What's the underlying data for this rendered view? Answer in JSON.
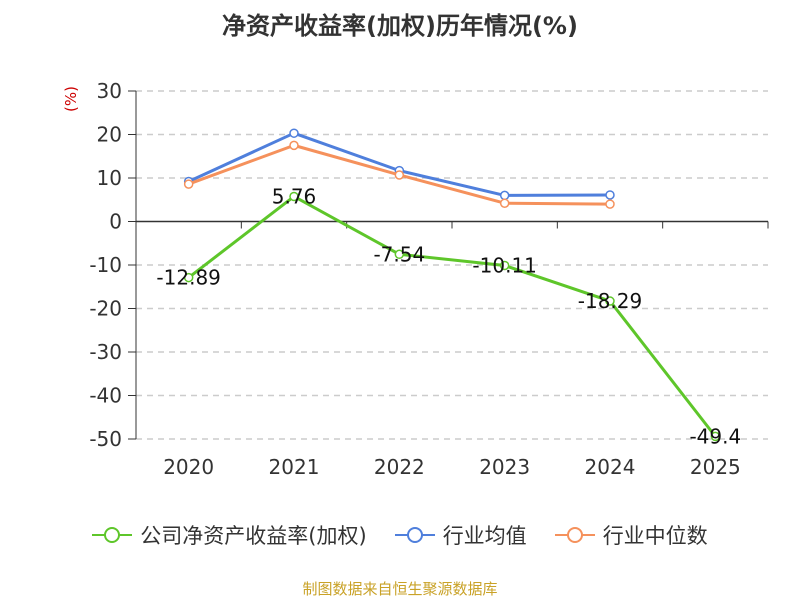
{
  "chart_data": {
    "type": "line",
    "title": "净资产收益率(加权)历年情况(%)",
    "ylabel": "(%)",
    "xlabel": "",
    "categories": [
      "2020",
      "2021",
      "2022",
      "2023",
      "2024",
      "2025"
    ],
    "ylim": [
      -50,
      30
    ],
    "yticks": [
      30,
      20,
      10,
      0,
      -10,
      -20,
      -30,
      -40,
      -50
    ],
    "grid": true,
    "legend_position": "bottom",
    "series": [
      {
        "name": "公司净资产收益率(加权)",
        "color": "#5ec62a",
        "values": [
          -12.89,
          5.76,
          -7.54,
          -10.11,
          -18.29,
          -49.4
        ],
        "labels": [
          "-12.89",
          "5.76",
          "-7.54",
          "-10.11",
          "-18.29",
          "-49.4"
        ]
      },
      {
        "name": "行业均值",
        "color": "#4f7fdc",
        "values": [
          9.2,
          20.3,
          11.7,
          6.0,
          6.1,
          null
        ]
      },
      {
        "name": "行业中位数",
        "color": "#f5915c",
        "values": [
          8.6,
          17.5,
          10.7,
          4.2,
          4.0,
          null
        ]
      }
    ]
  },
  "footer": "制图数据来自恒生聚源数据库"
}
